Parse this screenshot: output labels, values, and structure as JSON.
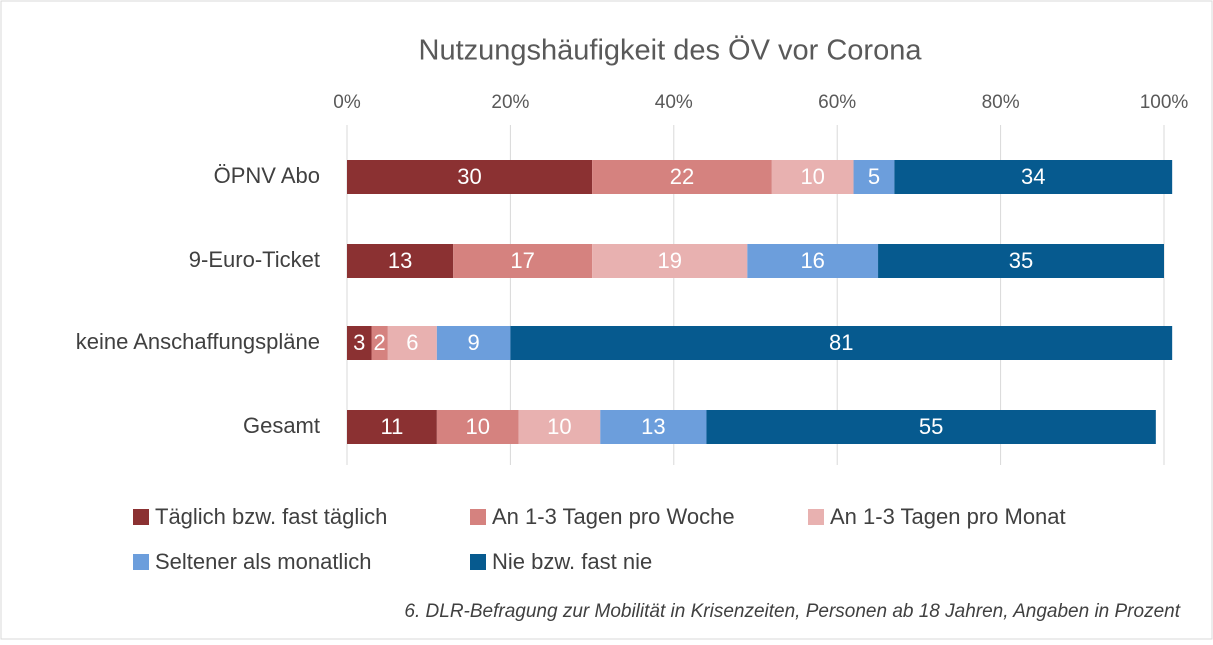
{
  "chart_data": {
    "type": "stacked-bar-horizontal",
    "title": "Nutzungshäufigkeit des ÖV vor Corona",
    "categories": [
      "ÖPNV Abo",
      "9-Euro-Ticket",
      "keine Anschaffungspläne",
      "Gesamt"
    ],
    "series": [
      {
        "name": "Täglich bzw. fast täglich",
        "color": "#8b3132",
        "values": [
          30,
          13,
          3,
          11
        ]
      },
      {
        "name": "An 1-3 Tagen pro Woche",
        "color": "#d5827f",
        "values": [
          22,
          17,
          2,
          10
        ]
      },
      {
        "name": "An 1-3 Tagen pro Monat",
        "color": "#e8b1b0",
        "values": [
          10,
          19,
          6,
          10
        ]
      },
      {
        "name": "Seltener als monatlich",
        "color": "#6c9edc",
        "values": [
          5,
          16,
          9,
          13
        ]
      },
      {
        "name": "Nie bzw. fast nie",
        "color": "#065a8f",
        "values": [
          34,
          35,
          81,
          55
        ]
      }
    ],
    "xlim": [
      0,
      100
    ],
    "xticks": [
      {
        "value": 0,
        "label": "0%"
      },
      {
        "value": 20,
        "label": "20%"
      },
      {
        "value": 40,
        "label": "40%"
      },
      {
        "value": 60,
        "label": "60%"
      },
      {
        "value": 80,
        "label": "80%"
      },
      {
        "value": 100,
        "label": "100%"
      }
    ],
    "grid": true,
    "legend": "bottom",
    "footnote": "6. DLR-Befragung zur Mobilität in Krisenzeiten, Personen ab 18 Jahren, Angaben in Prozent"
  }
}
